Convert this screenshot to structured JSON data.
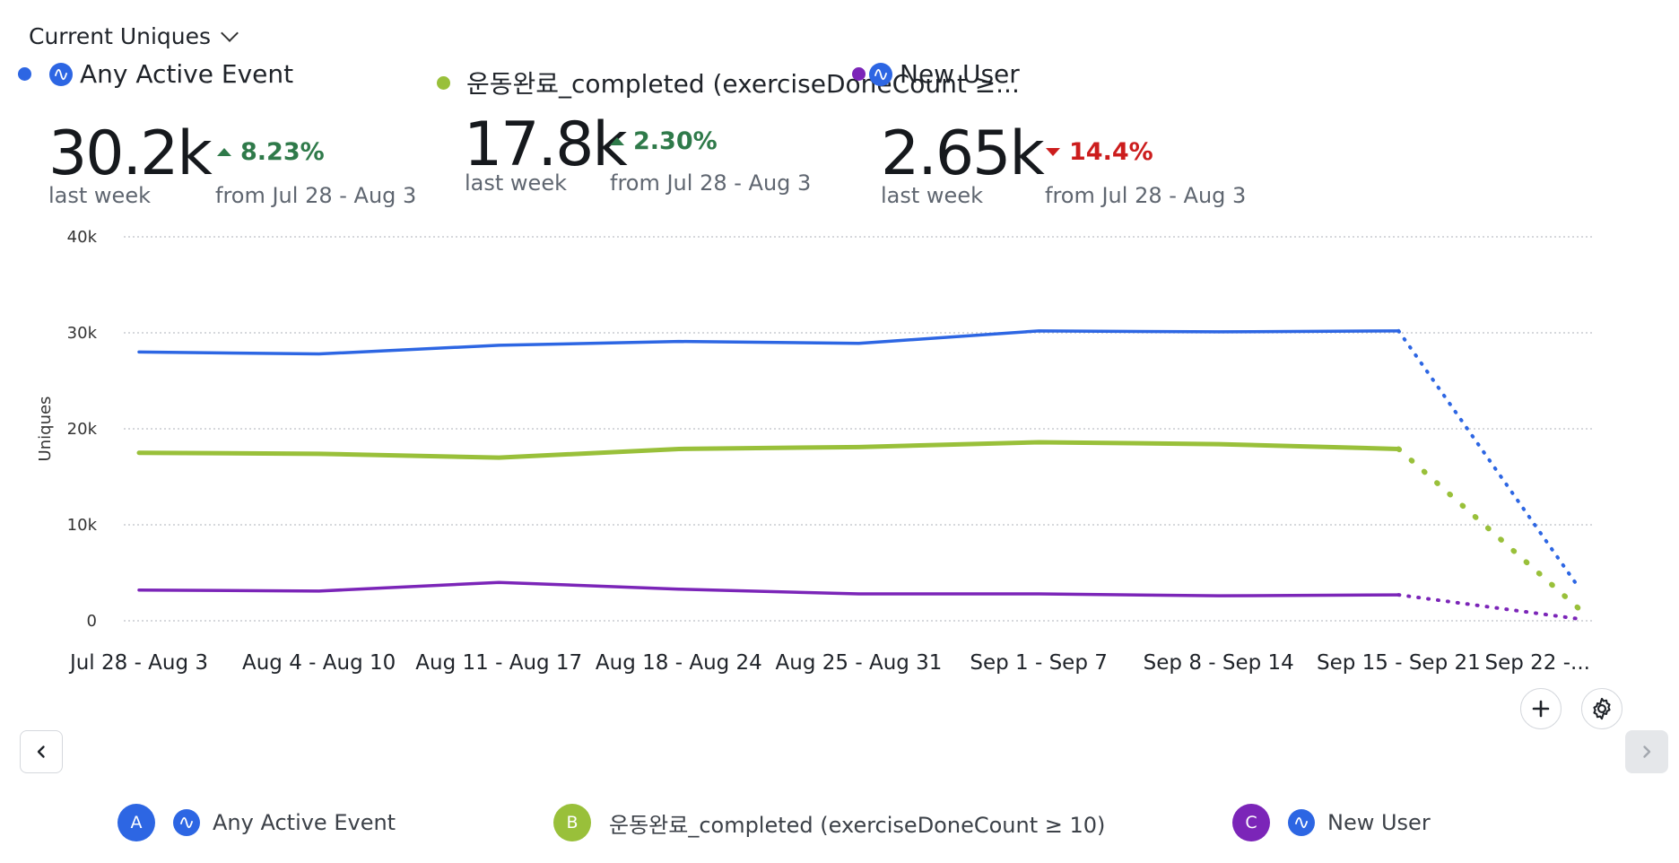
{
  "metric_selector": {
    "label": "Current Uniques",
    "icon": "chevron-down-icon"
  },
  "colors": {
    "a": "#2d66e3",
    "b": "#99c03a",
    "c": "#7b25b8",
    "up": "#2f7a4a",
    "down": "#cc1d1d",
    "grid": "#c9ccd1"
  },
  "summary": [
    {
      "name": "Any Active Event",
      "value": "30.2k",
      "value_label": "last week",
      "delta": "8.23%",
      "direction": "up",
      "delta_label": "from Jul 28 - Aug 3"
    },
    {
      "name": "운동완료_completed (exerciseDoneCount ≥...",
      "value": "17.8k",
      "value_label": "last week",
      "delta": "2.30%",
      "direction": "up",
      "delta_label": "from Jul 28 - Aug 3"
    },
    {
      "name": "New User",
      "value": "2.65k",
      "value_label": "last week",
      "delta": "14.4%",
      "direction": "down",
      "delta_label": "from Jul 28 - Aug 3"
    }
  ],
  "chart_data": {
    "type": "line",
    "ylabel": "Uniques",
    "xlabel": "",
    "ylim": [
      0,
      40000
    ],
    "yticks": [
      0,
      10000,
      20000,
      30000,
      40000
    ],
    "ytick_labels": [
      "0",
      "10k",
      "20k",
      "30k",
      "40k"
    ],
    "grid": true,
    "categories": [
      "Jul 28 - Aug 3",
      "Aug 4 - Aug 10",
      "Aug 11 - Aug 17",
      "Aug 18 - Aug 24",
      "Aug 25 - Aug 31",
      "Sep 1 - Sep 7",
      "Sep 8 - Sep 14",
      "Sep 15 - Sep 21",
      "Sep 22 -..."
    ],
    "incomplete_from_index": 7,
    "series": [
      {
        "name": "Any Active Event",
        "color": "#2d66e3",
        "values": [
          28000,
          27800,
          28700,
          29100,
          28900,
          30200,
          30100,
          30200,
          3500
        ]
      },
      {
        "name": "운동완료_completed (exerciseDoneCount ≥ 10)",
        "color": "#99c03a",
        "values": [
          17500,
          17400,
          17000,
          17900,
          18100,
          18600,
          18400,
          17900,
          1300
        ]
      },
      {
        "name": "New User",
        "color": "#7b25b8",
        "values": [
          3200,
          3100,
          4000,
          3300,
          2800,
          2800,
          2600,
          2700,
          200
        ]
      }
    ]
  },
  "bottom_legend": [
    {
      "letter": "A",
      "label": "Any Active Event"
    },
    {
      "letter": "B",
      "label": "운동완료_completed (exerciseDoneCount ≥ 10)"
    },
    {
      "letter": "C",
      "label": "New User"
    }
  ],
  "buttons": {
    "add": "plus-icon",
    "settings": "gear-icon",
    "prev": "chevron-left-icon",
    "next": "chevron-right-icon"
  }
}
